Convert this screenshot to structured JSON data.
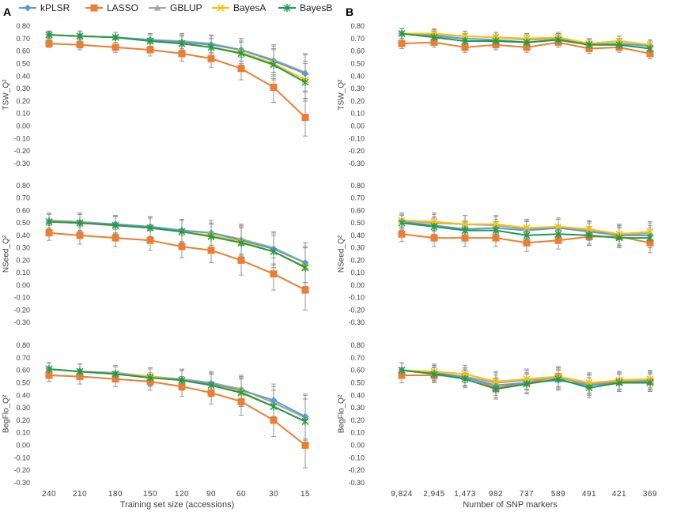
{
  "panels": [
    {
      "label": "A",
      "xlabel": "Training set size (accessions)"
    },
    {
      "label": "B",
      "xlabel": "Number of SNP markers"
    }
  ],
  "legend": [
    {
      "name": "kPLSR",
      "color": "#5B9BD5",
      "marker": "diamond"
    },
    {
      "name": "LASSO",
      "color": "#ED7D31",
      "marker": "square"
    },
    {
      "name": "GBLUP",
      "color": "#A5A5A5",
      "marker": "triangle"
    },
    {
      "name": "BayesA",
      "color": "#FFC000",
      "marker": "x"
    },
    {
      "name": "BayesB",
      "color": "#1E9B4B",
      "marker": "star"
    }
  ],
  "y_ticks": [
    "0.80",
    "0.70",
    "0.60",
    "0.50",
    "0.40",
    "0.30",
    "0.20",
    "0.10",
    "0.00",
    "-0.10",
    "-0.20",
    "-0.30"
  ],
  "chart_data": [
    {
      "type": "line",
      "panel": "A",
      "ylabel": "TSW_Q²",
      "xlabel": "Training set size (accessions)",
      "categories": [
        "240",
        "210",
        "180",
        "150",
        "120",
        "90",
        "60",
        "30",
        "15"
      ],
      "ylim": [
        -0.3,
        0.8
      ],
      "series": [
        {
          "name": "kPLSR",
          "values": [
            0.73,
            0.72,
            0.71,
            0.69,
            0.67,
            0.65,
            0.61,
            0.52,
            0.42
          ]
        },
        {
          "name": "LASSO",
          "values": [
            0.66,
            0.65,
            0.63,
            0.61,
            0.58,
            0.54,
            0.46,
            0.31,
            0.07
          ]
        },
        {
          "name": "GBLUP",
          "values": [
            0.73,
            0.72,
            0.71,
            0.69,
            0.68,
            0.66,
            0.61,
            0.53,
            0.43
          ]
        },
        {
          "name": "BayesA",
          "values": [
            0.73,
            0.72,
            0.71,
            0.68,
            0.66,
            0.63,
            0.59,
            0.5,
            0.37
          ]
        },
        {
          "name": "BayesB",
          "values": [
            0.73,
            0.72,
            0.71,
            0.68,
            0.66,
            0.63,
            0.58,
            0.49,
            0.35
          ]
        }
      ],
      "errors": [
        0.03,
        0.04,
        0.04,
        0.05,
        0.06,
        0.07,
        0.09,
        0.12,
        0.15
      ]
    },
    {
      "type": "line",
      "panel": "A",
      "ylabel": "NSeed_Q²",
      "xlabel": "Training set size (accessions)",
      "categories": [
        "240",
        "210",
        "180",
        "150",
        "120",
        "90",
        "60",
        "30",
        "15"
      ],
      "ylim": [
        -0.3,
        0.8
      ],
      "series": [
        {
          "name": "kPLSR",
          "values": [
            0.51,
            0.5,
            0.49,
            0.47,
            0.44,
            0.42,
            0.36,
            0.29,
            0.18
          ]
        },
        {
          "name": "LASSO",
          "values": [
            0.42,
            0.4,
            0.38,
            0.36,
            0.31,
            0.28,
            0.2,
            0.09,
            -0.04
          ]
        },
        {
          "name": "GBLUP",
          "values": [
            0.52,
            0.51,
            0.49,
            0.47,
            0.44,
            0.42,
            0.37,
            0.3,
            0.18
          ]
        },
        {
          "name": "BayesA",
          "values": [
            0.51,
            0.5,
            0.48,
            0.46,
            0.43,
            0.4,
            0.35,
            0.27,
            0.15
          ]
        },
        {
          "name": "BayesB",
          "values": [
            0.51,
            0.5,
            0.48,
            0.46,
            0.43,
            0.39,
            0.34,
            0.27,
            0.14
          ]
        }
      ],
      "errors": [
        0.06,
        0.07,
        0.07,
        0.08,
        0.09,
        0.1,
        0.12,
        0.13,
        0.16
      ]
    },
    {
      "type": "line",
      "panel": "A",
      "ylabel": "BegFlo_Q²",
      "xlabel": "Training set size (accessions)",
      "categories": [
        "240",
        "210",
        "180",
        "150",
        "120",
        "90",
        "60",
        "30",
        "15"
      ],
      "ylim": [
        -0.3,
        0.8
      ],
      "series": [
        {
          "name": "kPLSR",
          "values": [
            0.61,
            0.59,
            0.57,
            0.55,
            0.52,
            0.49,
            0.44,
            0.36,
            0.23
          ]
        },
        {
          "name": "LASSO",
          "values": [
            0.56,
            0.55,
            0.53,
            0.51,
            0.47,
            0.42,
            0.35,
            0.2,
            0.0
          ]
        },
        {
          "name": "GBLUP",
          "values": [
            0.61,
            0.59,
            0.58,
            0.55,
            0.53,
            0.5,
            0.45,
            0.34,
            0.22
          ]
        },
        {
          "name": "BayesA",
          "values": [
            0.61,
            0.59,
            0.57,
            0.55,
            0.52,
            0.48,
            0.43,
            0.31,
            0.19
          ]
        },
        {
          "name": "BayesB",
          "values": [
            0.61,
            0.59,
            0.57,
            0.54,
            0.52,
            0.48,
            0.42,
            0.31,
            0.19
          ]
        }
      ],
      "errors": [
        0.05,
        0.06,
        0.06,
        0.07,
        0.08,
        0.09,
        0.11,
        0.13,
        0.18
      ]
    },
    {
      "type": "line",
      "panel": "B",
      "ylabel": "TSW_Q²",
      "xlabel": "Number of SNP markers",
      "categories": [
        "9,824",
        "2,945",
        "1,473",
        "982",
        "737",
        "589",
        "491",
        "421",
        "369"
      ],
      "ylim": [
        -0.3,
        0.8
      ],
      "series": [
        {
          "name": "kPLSR",
          "values": [
            0.74,
            0.72,
            0.7,
            0.69,
            0.67,
            0.69,
            0.65,
            0.66,
            0.64
          ]
        },
        {
          "name": "LASSO",
          "values": [
            0.66,
            0.67,
            0.63,
            0.65,
            0.63,
            0.67,
            0.62,
            0.63,
            0.58
          ]
        },
        {
          "name": "GBLUP",
          "values": [
            0.74,
            0.73,
            0.72,
            0.71,
            0.69,
            0.7,
            0.66,
            0.68,
            0.65
          ]
        },
        {
          "name": "BayesA",
          "values": [
            0.74,
            0.74,
            0.72,
            0.71,
            0.7,
            0.71,
            0.66,
            0.68,
            0.65
          ]
        },
        {
          "name": "BayesB",
          "values": [
            0.74,
            0.71,
            0.68,
            0.68,
            0.67,
            0.69,
            0.65,
            0.65,
            0.62
          ]
        }
      ],
      "errors": [
        0.04,
        0.04,
        0.04,
        0.04,
        0.04,
        0.04,
        0.04,
        0.04,
        0.04
      ]
    },
    {
      "type": "line",
      "panel": "B",
      "ylabel": "NSeed_Q²",
      "xlabel": "Number of SNP markers",
      "categories": [
        "9,824",
        "2,945",
        "1,473",
        "982",
        "737",
        "589",
        "491",
        "421",
        "369"
      ],
      "ylim": [
        -0.3,
        0.8
      ],
      "series": [
        {
          "name": "kPLSR",
          "values": [
            0.51,
            0.48,
            0.45,
            0.46,
            0.44,
            0.46,
            0.43,
            0.4,
            0.4
          ]
        },
        {
          "name": "LASSO",
          "values": [
            0.41,
            0.38,
            0.38,
            0.38,
            0.34,
            0.36,
            0.39,
            0.39,
            0.34
          ]
        },
        {
          "name": "GBLUP",
          "values": [
            0.52,
            0.5,
            0.49,
            0.48,
            0.45,
            0.46,
            0.44,
            0.4,
            0.42
          ]
        },
        {
          "name": "BayesA",
          "values": [
            0.52,
            0.51,
            0.49,
            0.49,
            0.46,
            0.47,
            0.45,
            0.41,
            0.43
          ]
        },
        {
          "name": "BayesB",
          "values": [
            0.5,
            0.47,
            0.44,
            0.44,
            0.4,
            0.41,
            0.4,
            0.38,
            0.38
          ]
        }
      ],
      "errors": [
        0.06,
        0.07,
        0.07,
        0.07,
        0.07,
        0.07,
        0.07,
        0.08,
        0.08
      ]
    },
    {
      "type": "line",
      "panel": "B",
      "ylabel": "BegFlo_Q²",
      "xlabel": "Number of SNP markers",
      "categories": [
        "9,824",
        "2,945",
        "1,473",
        "982",
        "737",
        "589",
        "491",
        "421",
        "369"
      ],
      "ylim": [
        -0.3,
        0.8
      ],
      "series": [
        {
          "name": "kPLSR",
          "values": [
            0.6,
            0.58,
            0.54,
            0.48,
            0.5,
            0.52,
            0.48,
            0.5,
            0.51
          ]
        },
        {
          "name": "LASSO",
          "values": [
            0.56,
            0.56,
            0.55,
            0.46,
            0.5,
            0.55,
            0.48,
            0.51,
            0.51
          ]
        },
        {
          "name": "GBLUP",
          "values": [
            0.6,
            0.58,
            0.55,
            0.5,
            0.52,
            0.54,
            0.49,
            0.52,
            0.52
          ]
        },
        {
          "name": "BayesA",
          "values": [
            0.6,
            0.59,
            0.57,
            0.51,
            0.53,
            0.55,
            0.5,
            0.52,
            0.53
          ]
        },
        {
          "name": "BayesB",
          "values": [
            0.6,
            0.57,
            0.53,
            0.45,
            0.49,
            0.53,
            0.46,
            0.5,
            0.5
          ]
        }
      ],
      "errors": [
        0.06,
        0.06,
        0.07,
        0.08,
        0.08,
        0.08,
        0.08,
        0.07,
        0.07
      ]
    }
  ]
}
